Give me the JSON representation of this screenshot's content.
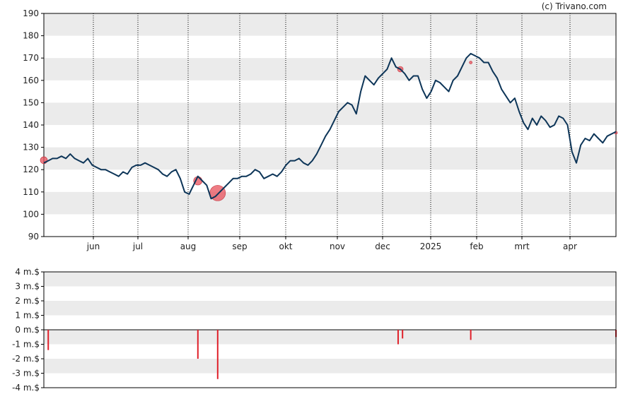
{
  "credit": "(c) Trivano.com",
  "colors": {
    "price_line": "#0d3558",
    "marker_fill": "#e8505b",
    "volume_bar": "#e0202a",
    "band": "#ebebeb",
    "axis": "#000000"
  },
  "chart_data": [
    {
      "type": "line",
      "title": "",
      "xlabel": "",
      "ylabel": "",
      "x_ticks": [
        "jun",
        "jul",
        "aug",
        "sep",
        "okt",
        "nov",
        "dec",
        "2025",
        "feb",
        "mrt",
        "apr"
      ],
      "y_ticks": [
        "90",
        "100",
        "110",
        "120",
        "130",
        "140",
        "150",
        "160",
        "170",
        "180",
        "190"
      ],
      "ylim": [
        90,
        190
      ],
      "grid": "vertical dotted at month boundaries, horizontal alternating bands",
      "series": [
        {
          "values": [
            123,
            124,
            125,
            125,
            126,
            125,
            127,
            125,
            124,
            123,
            125,
            122,
            121,
            120,
            120,
            119,
            118,
            117,
            119,
            118,
            121,
            122,
            122,
            123,
            122,
            121,
            120,
            118,
            117,
            119,
            120,
            116,
            110,
            109,
            113,
            117,
            115,
            113,
            107,
            108,
            110,
            112,
            114,
            116,
            116,
            117,
            117,
            118,
            120,
            119,
            116,
            117,
            118,
            117,
            119,
            122,
            124,
            124,
            125,
            123,
            122,
            124,
            127,
            131,
            135,
            138,
            142,
            146,
            148,
            150,
            149,
            145,
            155,
            162,
            160,
            158,
            161,
            163,
            165,
            170,
            166,
            165,
            163,
            160,
            162,
            162,
            156,
            152,
            155,
            160,
            159,
            157,
            155,
            160,
            162,
            166,
            170,
            172,
            171,
            170,
            168,
            168,
            164,
            161,
            156,
            153,
            150,
            152,
            146,
            141,
            138,
            143,
            140,
            144,
            142,
            139,
            140,
            144,
            143,
            140,
            128,
            123,
            131,
            134,
            133,
            136,
            134,
            132,
            135,
            136,
            137
          ]
        },
        {
          "name": "insider-trades",
          "points": [
            {
              "x": 0,
              "y": 124.2,
              "r": 5
            },
            {
              "x": 35,
              "y": 115,
              "r": 6
            },
            {
              "x": 39.5,
              "y": 109.5,
              "r": 11
            },
            {
              "x": 81,
              "y": 165,
              "r": 4
            },
            {
              "x": 97,
              "y": 168,
              "r": 2
            },
            {
              "x": 130,
              "y": 136.5,
              "r": 2
            }
          ]
        }
      ]
    },
    {
      "type": "bar",
      "title": "",
      "xlabel": "",
      "ylabel": "",
      "y_ticks": [
        "4 m.$",
        "3 m.$",
        "2 m.$",
        "1 m.$",
        "0 m.$",
        "-1 m.$",
        "-2 m.$",
        "-3 m.$",
        "-4 m.$"
      ],
      "ylim": [
        -4,
        4
      ],
      "grid": "horizontal alternating bands",
      "series": [
        {
          "values": [
            {
              "x": 1,
              "y": -1.4
            },
            {
              "x": 35,
              "y": -2.0
            },
            {
              "x": 39.5,
              "y": -3.4
            },
            {
              "x": 80.5,
              "y": -1.0
            },
            {
              "x": 81.5,
              "y": -0.6
            },
            {
              "x": 97,
              "y": -0.7
            },
            {
              "x": 130,
              "y": -0.5
            }
          ]
        }
      ]
    }
  ]
}
